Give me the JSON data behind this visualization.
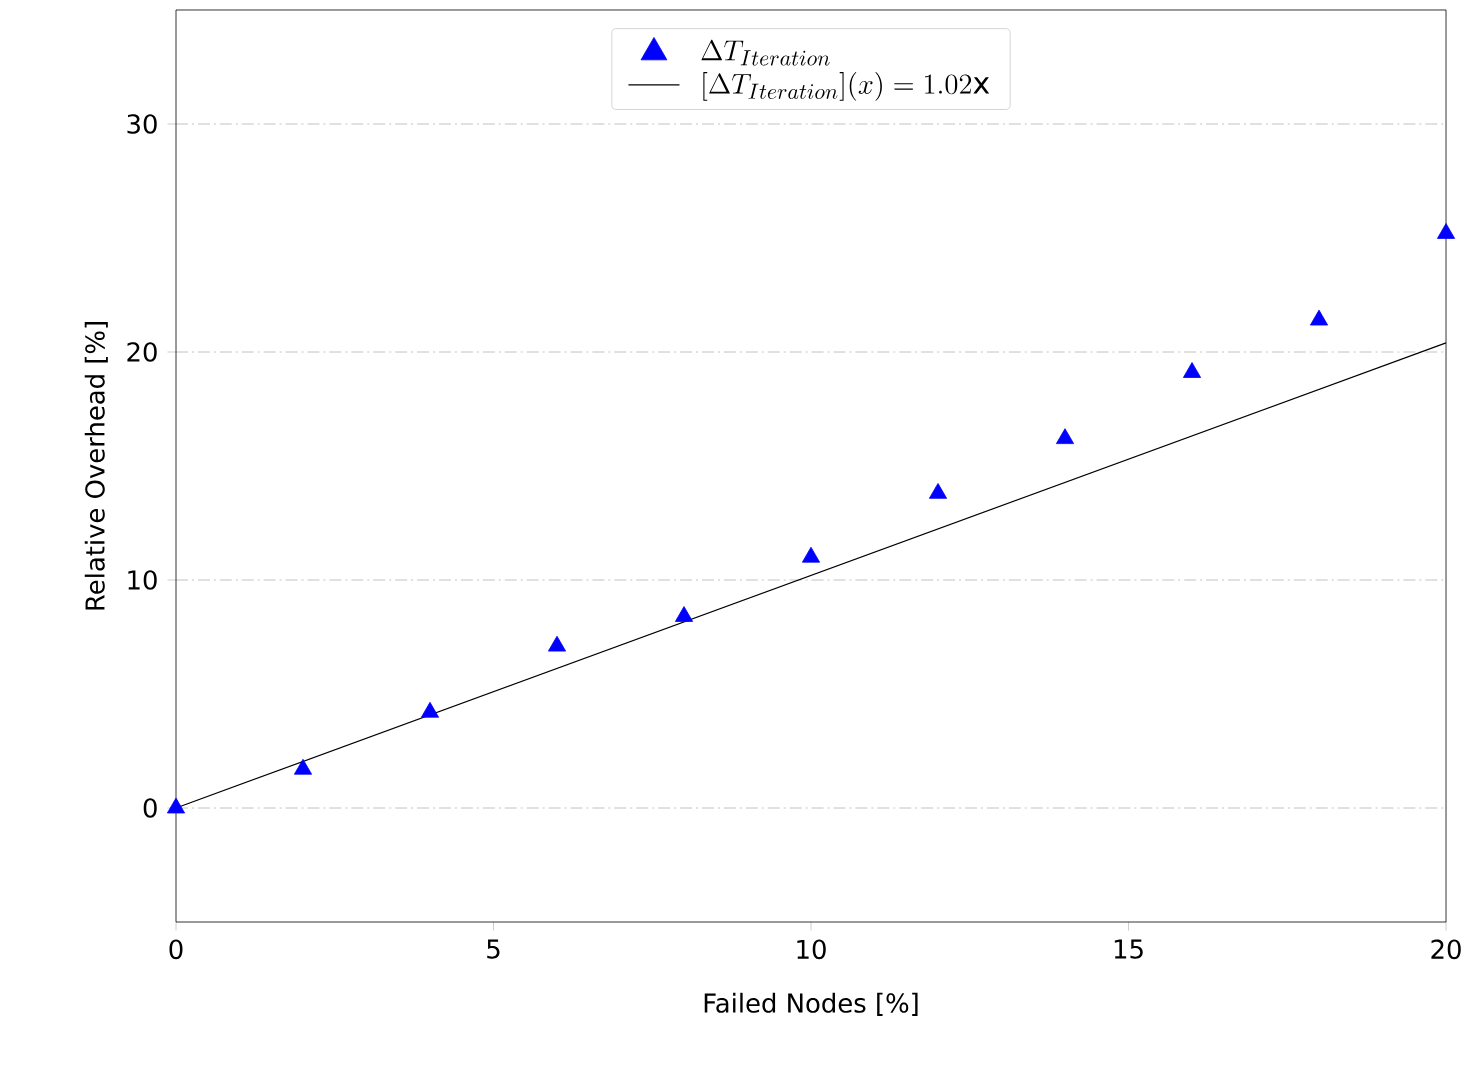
{
  "chart_data": {
    "type": "scatter",
    "xlabel": "Failed Nodes [%]",
    "ylabel": "Relative Overhead [%]",
    "xlim": [
      0,
      20
    ],
    "ylim": [
      -5,
      35
    ],
    "xticks": [
      0,
      5,
      10,
      15,
      20
    ],
    "yticks": [
      0,
      10,
      20,
      30
    ],
    "grid": "y",
    "legend": "top",
    "marker": "triangle",
    "series": [
      {
        "name": "\\Delta T_{Iteration}",
        "color": "#0000ff",
        "x": [
          0,
          2,
          4,
          6,
          8,
          10,
          12,
          14,
          16,
          18,
          20
        ],
        "values": [
          0,
          1.7,
          4.2,
          7.1,
          8.4,
          11.0,
          13.8,
          16.2,
          19.1,
          21.4,
          25.2
        ]
      },
      {
        "name": "[\\Delta T_{Iteration}](x) = 1.02\\mathrm{x}",
        "type": "line",
        "color": "#000000",
        "line_style": "solid",
        "marker": "none",
        "x": [
          0,
          20
        ],
        "values": [
          0,
          20.4
        ]
      }
    ]
  }
}
